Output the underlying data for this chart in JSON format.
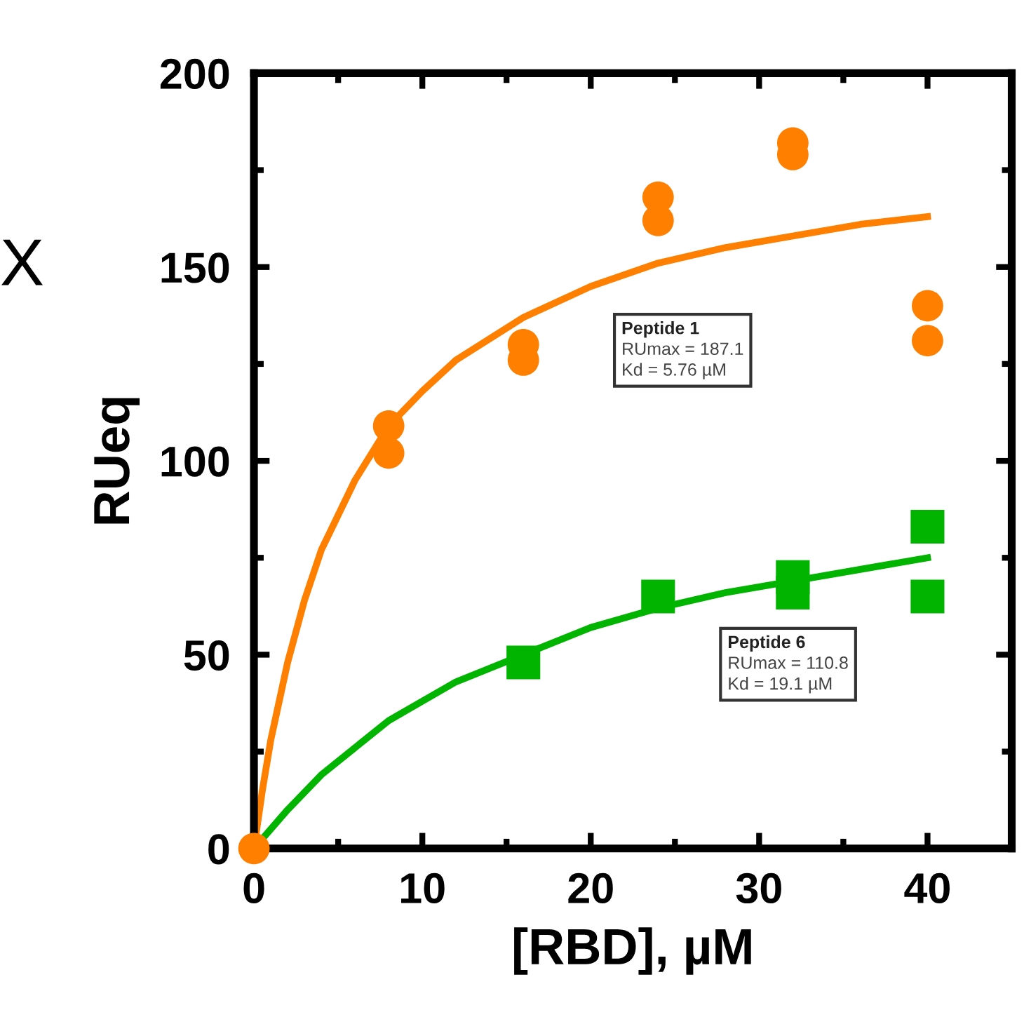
{
  "chart_data": {
    "type": "scatter",
    "xlabel": "[RBD], µM",
    "ylabel": "RUeq",
    "xlim": [
      0,
      45
    ],
    "ylim": [
      0,
      200
    ],
    "xticks": [
      0,
      10,
      20,
      30,
      40
    ],
    "yticks": [
      0,
      50,
      100,
      150,
      200
    ],
    "grid": false,
    "legend": false,
    "series": [
      {
        "type": "line",
        "color": "#ff7f00",
        "marker": "none",
        "line_style": "solid",
        "x": [
          0,
          0.5,
          1,
          2,
          3,
          4,
          6,
          8,
          10,
          12,
          16,
          20,
          24,
          28,
          32,
          36,
          40
        ],
        "values": [
          0,
          15,
          28,
          48,
          64,
          77,
          95,
          109,
          118,
          126,
          137,
          145,
          151,
          155,
          158,
          161,
          163
        ]
      },
      {
        "type": "line",
        "color": "#00b400",
        "marker": "none",
        "line_style": "solid",
        "x": [
          0,
          2,
          4,
          8,
          12,
          16,
          20,
          24,
          28,
          32,
          36,
          40
        ],
        "values": [
          0,
          10,
          19,
          33,
          43,
          50,
          57,
          62,
          66,
          69,
          72,
          75
        ]
      },
      {
        "color": "#00b400",
        "marker": "square",
        "x": [
          16,
          24,
          32,
          32,
          40,
          40
        ],
        "values": [
          48,
          65,
          70,
          66,
          83,
          65
        ]
      },
      {
        "color": "#ff7f00",
        "marker": "circle",
        "x": [
          0,
          8,
          8,
          16,
          16,
          24,
          24,
          32,
          32,
          40,
          40
        ],
        "values": [
          0,
          109,
          102,
          130,
          126,
          168,
          162,
          182,
          179,
          140,
          131
        ]
      }
    ],
    "annotations": [
      "X",
      "Peptide 1",
      "RUmax = 187.1",
      "Kd = 5.76 µM",
      "Peptide 6",
      "RUmax = 110.8",
      "Kd = 19.1 µM"
    ]
  }
}
